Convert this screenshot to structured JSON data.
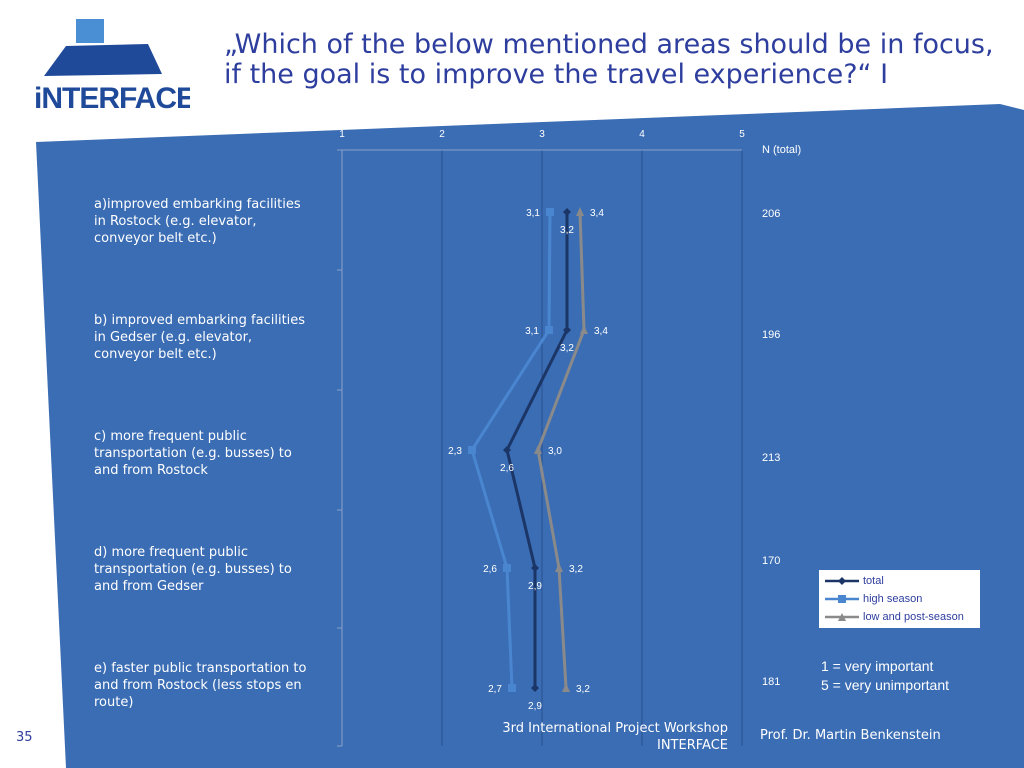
{
  "slide": {
    "title": "„Which of the below mentioned areas should be in focus, if the goal is to improve the travel experience?“ I",
    "page_number": "35",
    "footer_center": "3rd International Project Workshop\nINTERFACE",
    "footer_author": "Prof. Dr. Martin Benkenstein",
    "logo_text": "INTERFACE",
    "scale_note": "1 = very important\n5 = very unimportant",
    "colors": {
      "background_panel": "#3b6db4",
      "title_blue": "#2e3e9e",
      "total": "#1b3566",
      "high_season": "#4a86d0",
      "low_post_season": "#8a8a8a",
      "logo_light": "#4a8fd4",
      "logo_dark": "#1f4a9a"
    }
  },
  "n_header": "N (total)",
  "categories": [
    {
      "label": "a)improved embarking facilities\nin Rostock (e.g. elevator,\nconveyor belt etc.)",
      "n": "206"
    },
    {
      "label": "b) improved embarking facilities\nin Gedser (e.g. elevator,\nconveyor belt etc.)",
      "n": "196"
    },
    {
      "label": "c) more frequent public\ntransportation (e.g. busses)  to\nand from Rostock",
      "n": "213"
    },
    {
      "label": "d) more frequent public\ntransportation (e.g. busses)  to\nand from Gedser",
      "n": "170"
    },
    {
      "label": "e) faster public transportation to\nand from Rostock (less stops en\nroute)",
      "n": "181"
    }
  ],
  "chart_data": {
    "type": "line",
    "orientation": "horizontal-values",
    "x_ticks": [
      "1",
      "2",
      "3",
      "4",
      "5"
    ],
    "xlim": [
      1,
      5
    ],
    "categories": [
      "a",
      "b",
      "c",
      "d",
      "e"
    ],
    "series": [
      {
        "name": "total",
        "values": [
          3.25,
          3.25,
          2.65,
          2.93,
          2.93
        ],
        "labels": [
          "3,2",
          "3,2",
          "2,6",
          "2,9",
          "2,9"
        ],
        "marker": "diamond"
      },
      {
        "name": "high season",
        "values": [
          3.08,
          3.07,
          2.3,
          2.65,
          2.7
        ],
        "labels": [
          "3,1",
          "3,1",
          "2,3",
          "2,6",
          "2,7"
        ],
        "marker": "square"
      },
      {
        "name": "low and post-season",
        "values": [
          3.38,
          3.42,
          2.96,
          3.17,
          3.24
        ],
        "labels": [
          "3,4",
          "3,4",
          "3,0",
          "3,2",
          "3,2"
        ],
        "marker": "triangle"
      }
    ],
    "grid": true,
    "legend": "bottom-right"
  }
}
